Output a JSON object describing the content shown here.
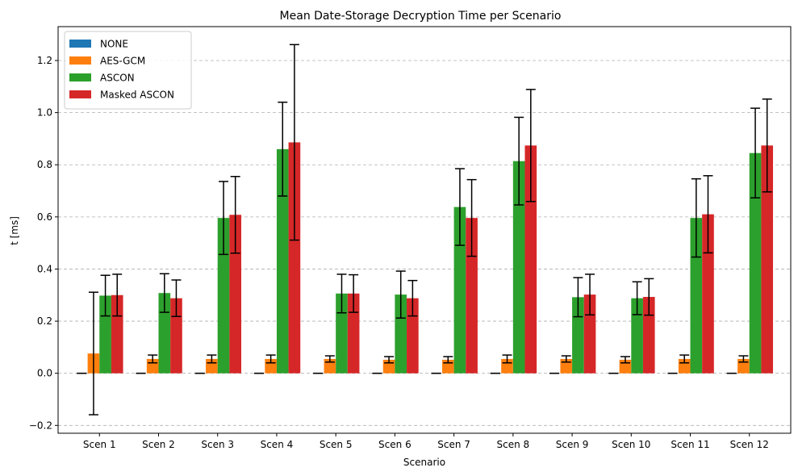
{
  "chart_data": {
    "type": "bar",
    "title": "Mean Date-Storage Decryption Time per Scenario",
    "xlabel": "Scenario",
    "ylabel": "t [ms]",
    "ylim": [
      -0.23,
      1.33
    ],
    "yticks": [
      -0.2,
      0.0,
      0.2,
      0.4,
      0.6,
      0.8,
      1.0,
      1.2
    ],
    "ytick_labels": [
      "−0.2",
      "0.0",
      "0.2",
      "0.4",
      "0.6",
      "0.8",
      "1.0",
      "1.2"
    ],
    "grid": "y-dashed",
    "legend_position": "top-left",
    "categories": [
      "Scen 1",
      "Scen 2",
      "Scen 3",
      "Scen 4",
      "Scen 5",
      "Scen 6",
      "Scen 7",
      "Scen 8",
      "Scen 9",
      "Scen 10",
      "Scen 11",
      "Scen 12"
    ],
    "series": [
      {
        "name": "NONE",
        "color": "#1f77b4",
        "values": [
          0.0,
          0.0,
          0.0,
          0.0,
          0.0,
          0.0,
          0.0,
          0.0,
          0.0,
          0.0,
          0.0,
          0.0
        ],
        "errors": [
          0.0,
          0.0,
          0.0,
          0.0,
          0.0,
          0.0,
          0.0,
          0.0,
          0.0,
          0.0,
          0.0,
          0.0
        ]
      },
      {
        "name": "AES-GCM",
        "color": "#ff7f0e",
        "values": [
          0.076,
          0.055,
          0.055,
          0.055,
          0.055,
          0.052,
          0.052,
          0.055,
          0.055,
          0.052,
          0.055,
          0.055
        ],
        "errors": [
          0.235,
          0.015,
          0.015,
          0.015,
          0.012,
          0.012,
          0.012,
          0.015,
          0.012,
          0.012,
          0.015,
          0.012
        ]
      },
      {
        "name": "ASCON",
        "color": "#2ca02c",
        "values": [
          0.298,
          0.308,
          0.596,
          0.86,
          0.306,
          0.302,
          0.638,
          0.814,
          0.292,
          0.288,
          0.596,
          0.845
        ],
        "errors": [
          0.078,
          0.074,
          0.14,
          0.18,
          0.074,
          0.09,
          0.147,
          0.168,
          0.075,
          0.063,
          0.15,
          0.172
        ]
      },
      {
        "name": "Masked ASCON",
        "color": "#d62728",
        "values": [
          0.3,
          0.288,
          0.608,
          0.886,
          0.306,
          0.288,
          0.596,
          0.874,
          0.302,
          0.293,
          0.61,
          0.874
        ],
        "errors": [
          0.08,
          0.07,
          0.147,
          0.375,
          0.072,
          0.068,
          0.147,
          0.215,
          0.078,
          0.07,
          0.148,
          0.178
        ]
      }
    ]
  }
}
